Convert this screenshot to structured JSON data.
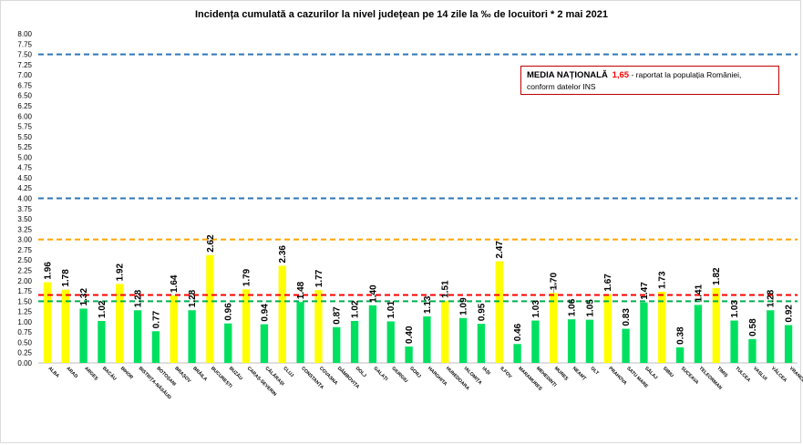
{
  "chart_data": {
    "type": "bar",
    "title": "Incidența cumulată a cazurilor la nivel județean pe 14 zile la ‰ de locuitori *   2 mai 2021",
    "categories": [
      "ALBA",
      "ARAD",
      "ARGEȘ",
      "BACĂU",
      "BIHOR",
      "BISTRIȚA-NĂSĂUD",
      "BOTOȘANI",
      "BRAȘOV",
      "BRĂILA",
      "BUCUREȘTI",
      "BUZĂU",
      "CARAȘ-SEVERIN",
      "CĂLĂRAȘI",
      "CLUJ",
      "CONSTANȚA",
      "COVASNA",
      "DÂMBOVIȚA",
      "DOLJ",
      "GALAȚI",
      "GIURGIU",
      "GORJ",
      "HARGHITA",
      "HUNEDOARA",
      "IALOMIȚA",
      "IAȘI",
      "ILFOV",
      "MARAMUREȘ",
      "MEHEDINȚI",
      "MUREȘ",
      "NEAMȚ",
      "OLT",
      "PRAHOVA",
      "SATU MARE",
      "SĂLAJ",
      "SIBIU",
      "SUCEAVA",
      "TELEORMAN",
      "TIMIȘ",
      "TULCEA",
      "VASLUI",
      "VÂLCEA",
      "VRANCEA"
    ],
    "values": [
      1.96,
      1.78,
      1.32,
      1.02,
      1.92,
      1.28,
      0.77,
      1.64,
      1.28,
      2.62,
      0.96,
      1.79,
      0.94,
      2.36,
      1.48,
      1.77,
      0.87,
      1.02,
      1.4,
      1.01,
      0.4,
      1.13,
      1.51,
      1.09,
      0.95,
      2.47,
      0.46,
      1.03,
      1.7,
      1.06,
      1.05,
      1.67,
      0.83,
      1.47,
      1.73,
      0.38,
      1.41,
      1.82,
      1.03,
      0.58,
      1.28,
      0.92
    ],
    "value_labels": [
      "1.96",
      "1.78",
      "1.32",
      "1.02",
      "1.92",
      "1.28",
      "0.77",
      "1.64",
      "1.28",
      "2.62",
      "0.96",
      "1.79",
      "0.94",
      "2.36",
      "1.48",
      "1.77",
      "0.87",
      "1.02",
      "1.40",
      "1.01",
      "0.40",
      "1.13",
      "1.51",
      "1.09",
      "0.95",
      "2.47",
      "0.46",
      "1.03",
      "1.70",
      "1.06",
      "1.05",
      "1.67",
      "0.83",
      "1.47",
      "1.73",
      "0.38",
      "1.41",
      "1.82",
      "1.03",
      "0.58",
      "1.28",
      "0.92"
    ],
    "ylim": [
      0,
      8
    ],
    "yticks": [
      "0.00",
      "0.25",
      "0.50",
      "0.75",
      "1.00",
      "1.25",
      "1.50",
      "1.75",
      "2.00",
      "2.25",
      "2.50",
      "2.75",
      "3.00",
      "3.25",
      "3.50",
      "3.75",
      "4.00",
      "4.25",
      "4.50",
      "4.75",
      "5.00",
      "5.25",
      "5.50",
      "5.75",
      "6.00",
      "6.25",
      "6.50",
      "6.75",
      "7.00",
      "7.25",
      "7.50",
      "7.75",
      "8.00"
    ],
    "reference_lines": [
      {
        "value": 7.5,
        "color": "#2e75b6"
      },
      {
        "value": 4.0,
        "color": "#2e75b6"
      },
      {
        "value": 3.0,
        "color": "#ffa500"
      },
      {
        "value": 1.65,
        "color": "#ff0000"
      },
      {
        "value": 1.5,
        "color": "#00b050"
      }
    ],
    "threshold": 1.5,
    "colors": {
      "above": "#ffff00",
      "below": "#00e060"
    },
    "annotation": {
      "label": "MEDIA NAȚIONALĂ",
      "value": "1,65",
      "text_part1": "- raportat la populația României,",
      "text_part2": "conform datelor INS"
    },
    "grid": false
  }
}
